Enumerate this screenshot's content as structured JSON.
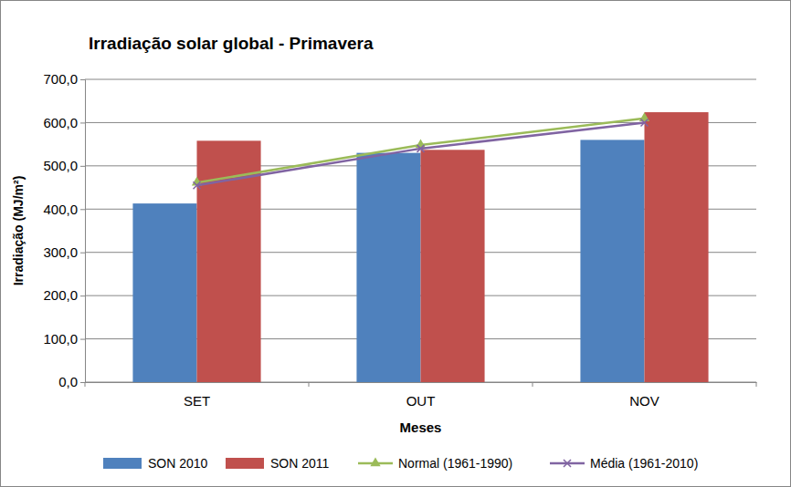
{
  "chart_data": {
    "type": "bar",
    "title": "Irradiação solar global - Primavera",
    "x_label": "Meses",
    "y_label": "Irradiação (MJ/m²)",
    "categories": [
      "SET",
      "OUT",
      "NOV"
    ],
    "series": [
      {
        "name": "SON 2010",
        "type": "bar",
        "color": "#4f81bd",
        "values": [
          413,
          530,
          560
        ]
      },
      {
        "name": "SON 2011",
        "type": "bar",
        "color": "#c0504d",
        "values": [
          558,
          537,
          624
        ]
      },
      {
        "name": "Normal (1961-1990)",
        "type": "line",
        "color": "#9bbb59",
        "marker": "triangle",
        "values": [
          461,
          548,
          610
        ]
      },
      {
        "name": "Média (1961-2010)",
        "type": "line",
        "color": "#8064a2",
        "marker": "x",
        "values": [
          455,
          540,
          600
        ]
      }
    ],
    "ylim": [
      0,
      700
    ],
    "yticks": [
      {
        "value": 0,
        "label": "0,0"
      },
      {
        "value": 100,
        "label": "100,0"
      },
      {
        "value": 200,
        "label": "200,0"
      },
      {
        "value": 300,
        "label": "300,0"
      },
      {
        "value": 400,
        "label": "400,0"
      },
      {
        "value": 500,
        "label": "500,0"
      },
      {
        "value": 600,
        "label": "600,0"
      },
      {
        "value": 700,
        "label": "700,0"
      }
    ],
    "grid": true,
    "legend": "bottom"
  }
}
